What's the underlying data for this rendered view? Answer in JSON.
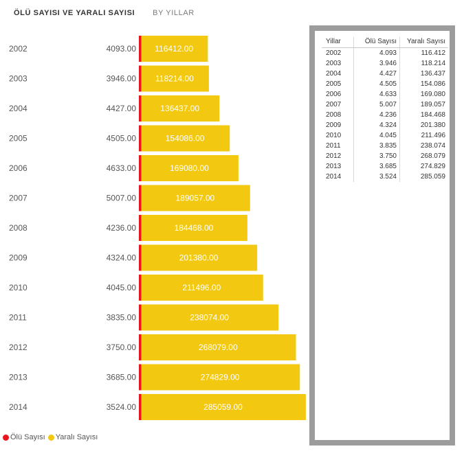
{
  "header": {
    "title": "ÖLÜ SAYISI  VE   YARALI SAYISI",
    "subtitle": "BY YILLAR"
  },
  "legend": {
    "items": [
      {
        "label": "Ölü Sayısı",
        "color": "#e8161e"
      },
      {
        "label": "Yaralı Sayısı",
        "color": "#f2c811"
      }
    ]
  },
  "colors": {
    "olu": "#e8161e",
    "yarali": "#f2c811",
    "frame": "#9c9c9c"
  },
  "chart_data": {
    "type": "bar",
    "orientation": "horizontal",
    "categories": [
      "2002",
      "2003",
      "2004",
      "2005",
      "2006",
      "2007",
      "2008",
      "2009",
      "2010",
      "2011",
      "2012",
      "2013",
      "2014"
    ],
    "series": [
      {
        "name": "Ölü Sayısı",
        "values": [
          4093,
          3946,
          4427,
          4505,
          4633,
          5007,
          4236,
          4324,
          4045,
          3835,
          3750,
          3685,
          3524
        ],
        "labels": [
          "4093.00",
          "3946.00",
          "4427.00",
          "4505.00",
          "4633.00",
          "5007.00",
          "4236.00",
          "4324.00",
          "4045.00",
          "3835.00",
          "3750.00",
          "3685.00",
          "3524.00"
        ]
      },
      {
        "name": "Yaralı Sayısı",
        "values": [
          116412,
          118214,
          136437,
          154086,
          169080,
          189057,
          184468,
          201380,
          211496,
          238074,
          268079,
          274829,
          285059
        ],
        "labels": [
          "116412.00",
          "118214.00",
          "136437.00",
          "154086.00",
          "169080.00",
          "189057.00",
          "184468.00",
          "201380.00",
          "211496.00",
          "238074.00",
          "268079.00",
          "274829.00",
          "285059.00"
        ]
      }
    ],
    "title": "ÖLÜ SAYISI  VE   YARALI SAYISI",
    "xlabel": "",
    "ylabel": "",
    "grid": false,
    "legend_position": "bottom-left"
  },
  "table": {
    "headers": [
      "Yillar",
      "Ölü Sayısı",
      "Yaralı Sayısı"
    ],
    "rows": [
      [
        "2002",
        "4.093",
        "116.412"
      ],
      [
        "2003",
        "3.946",
        "118.214"
      ],
      [
        "2004",
        "4.427",
        "136.437"
      ],
      [
        "2005",
        "4.505",
        "154.086"
      ],
      [
        "2006",
        "4.633",
        "169.080"
      ],
      [
        "2007",
        "5.007",
        "189.057"
      ],
      [
        "2008",
        "4.236",
        "184.468"
      ],
      [
        "2009",
        "4.324",
        "201.380"
      ],
      [
        "2010",
        "4.045",
        "211.496"
      ],
      [
        "2011",
        "3.835",
        "238.074"
      ],
      [
        "2012",
        "3.750",
        "268.079"
      ],
      [
        "2013",
        "3.685",
        "274.829"
      ],
      [
        "2014",
        "3.524",
        "285.059"
      ]
    ]
  }
}
